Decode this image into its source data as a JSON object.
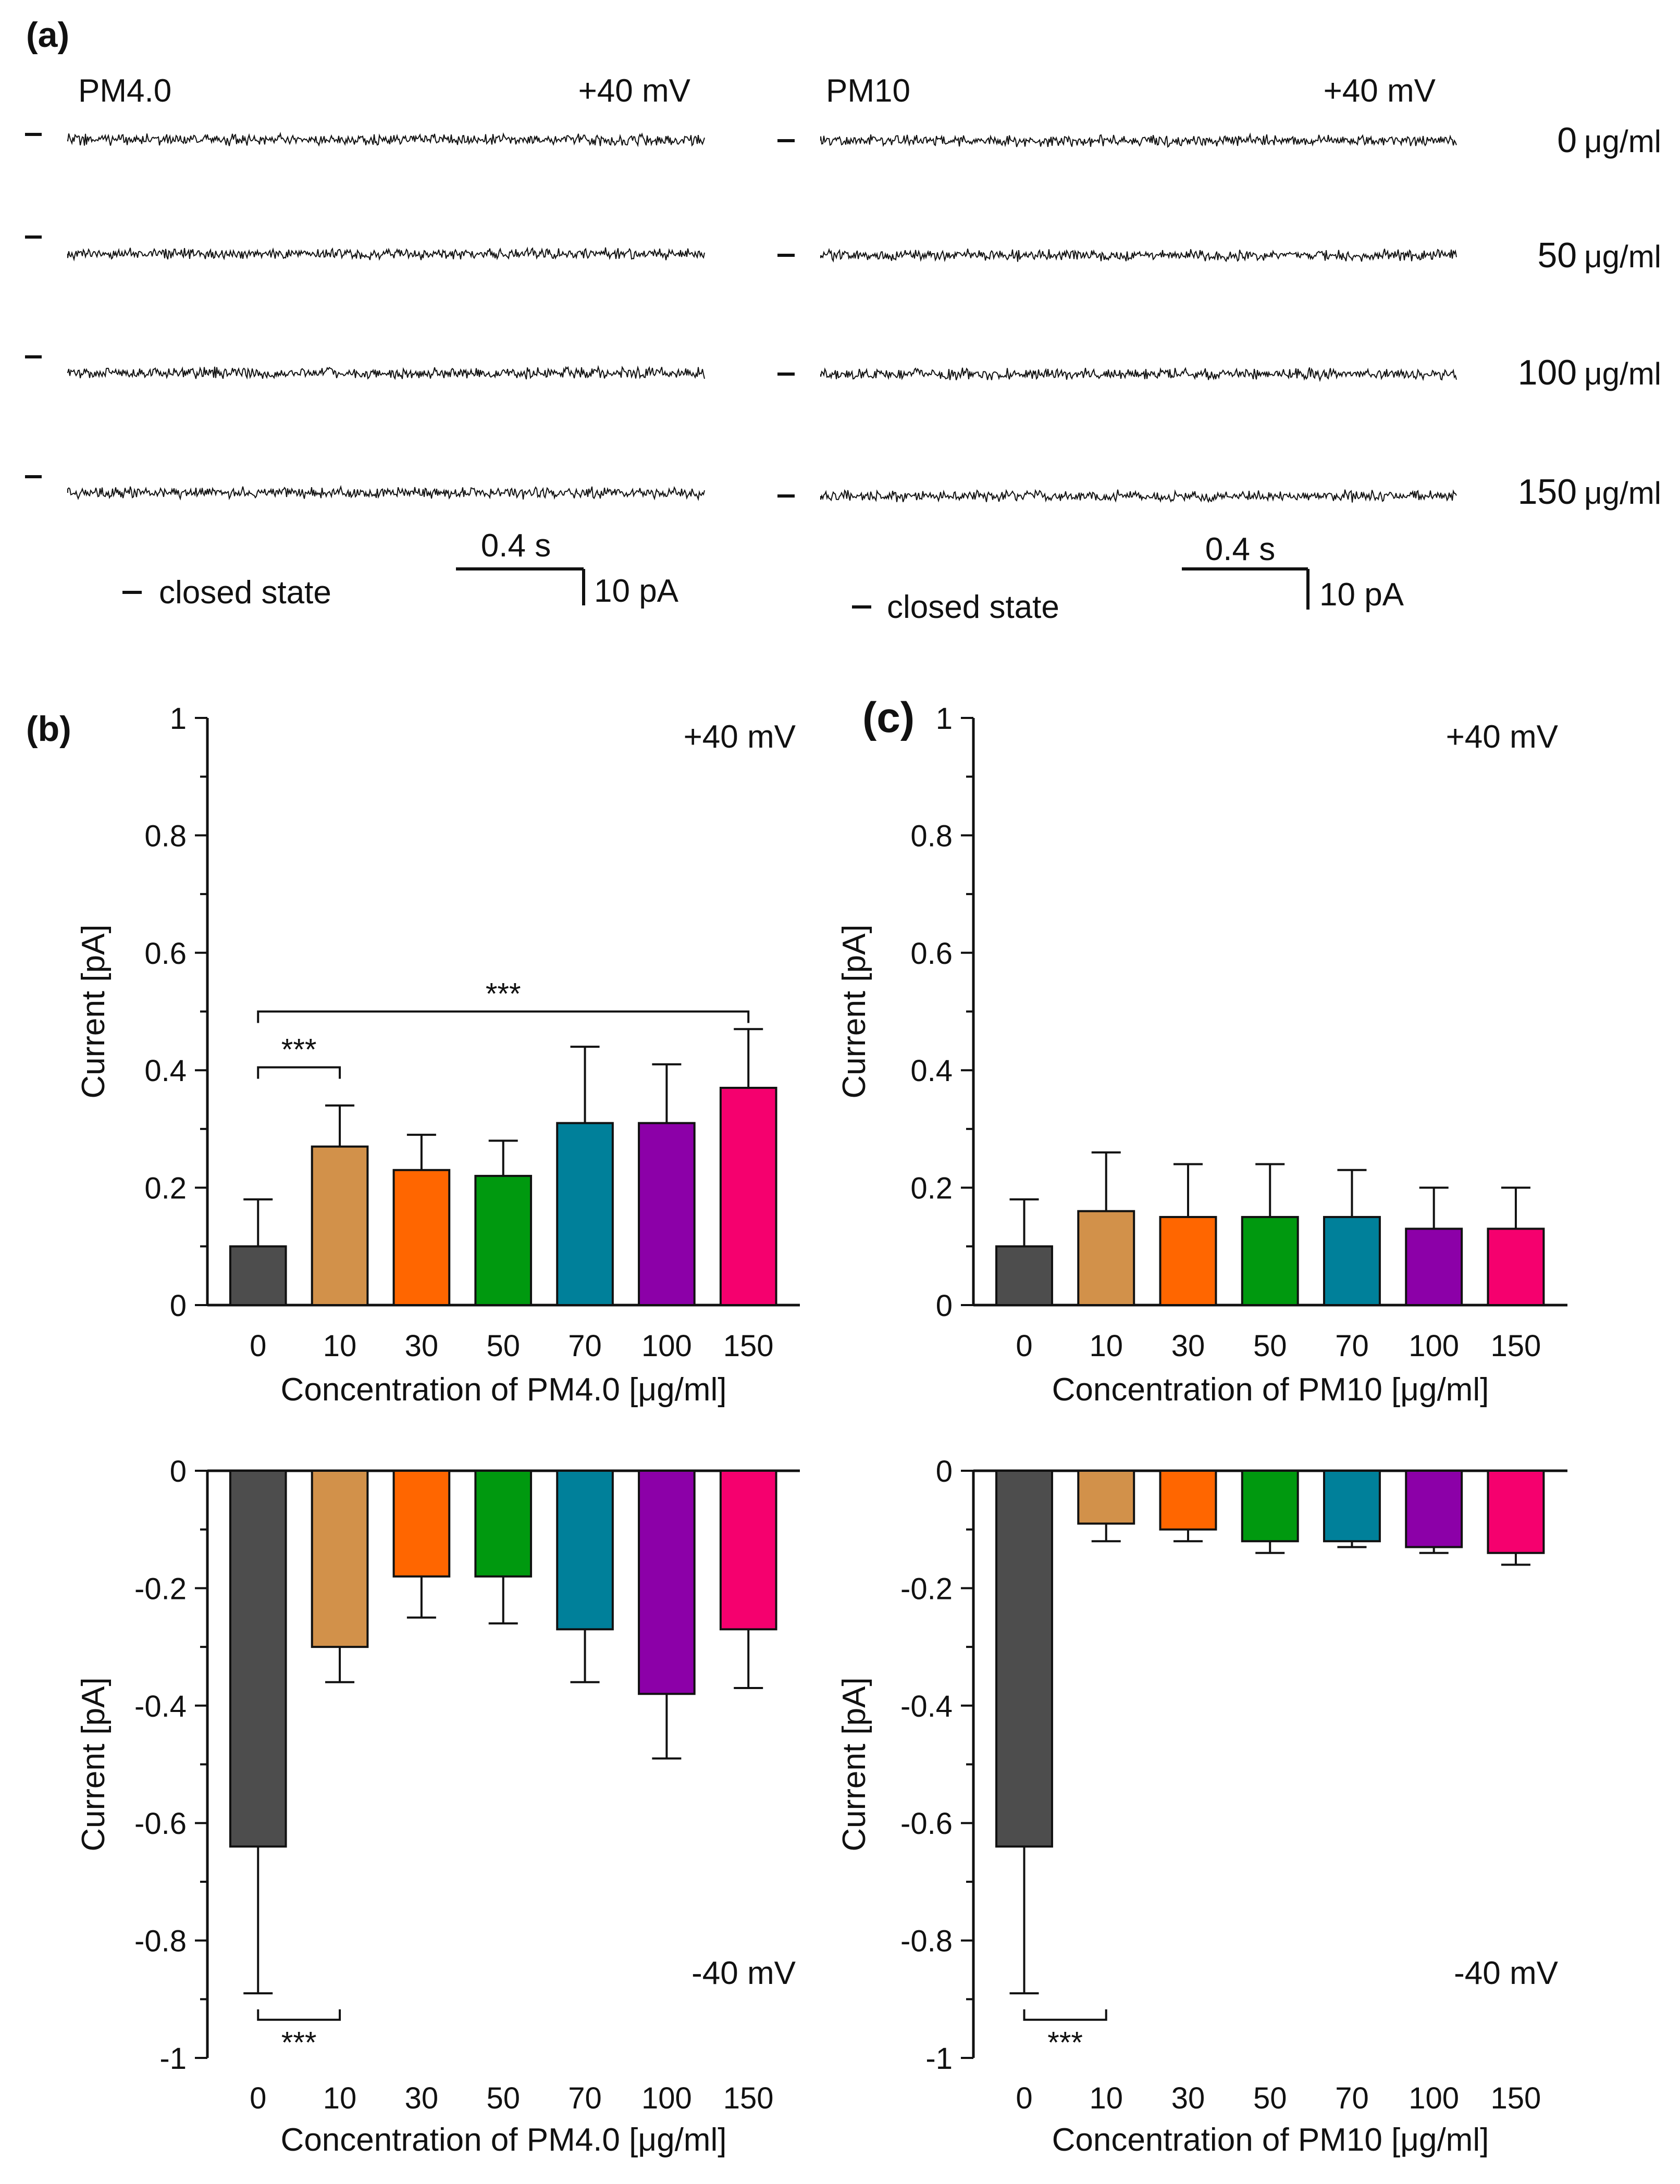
{
  "panel_a": {
    "label": "(a)",
    "left": {
      "title": "PM4.0",
      "voltage": "+40 mV",
      "closed_state": "closed state",
      "scale_time": "0.4 s",
      "scale_current": "10 pA"
    },
    "right": {
      "title": "PM10",
      "voltage": "+40 mV",
      "closed_state": "closed state",
      "scale_time": "0.4 s",
      "scale_current": "10 pA"
    },
    "rows": [
      {
        "value": "0",
        "unit": "μg/ml"
      },
      {
        "value": "50",
        "unit": "μg/ml"
      },
      {
        "value": "100",
        "unit": "μg/ml"
      },
      {
        "value": "150",
        "unit": "μg/ml"
      }
    ]
  },
  "panel_b_label": "(b)",
  "panel_c_label": "(c)",
  "colors": [
    "#4d4d4d",
    "#d2914a",
    "#ff6600",
    "#00990f",
    "#00809a",
    "#8c00a8",
    "#f5006e"
  ],
  "chart_data": [
    {
      "type": "bar",
      "panel": "b-top",
      "categories": [
        "0",
        "10",
        "30",
        "50",
        "70",
        "100",
        "150"
      ],
      "values": [
        0.1,
        0.27,
        0.23,
        0.22,
        0.31,
        0.31,
        0.37
      ],
      "errors": [
        0.08,
        0.07,
        0.06,
        0.06,
        0.13,
        0.1,
        0.1
      ],
      "annotation": "+40 mV",
      "xlabel": "Concentration of PM4.0 [μg/ml]",
      "ylabel": "Current [pA]",
      "ylim": [
        0,
        1
      ],
      "yticks": [
        0,
        0.2,
        0.4,
        0.6,
        0.8,
        1
      ],
      "ytick_labels": [
        "0",
        "0.2",
        "0.4",
        "0.6",
        "0.8",
        "1"
      ],
      "significance": [
        {
          "from": 0,
          "to": 1,
          "label": "***"
        },
        {
          "from": 0,
          "to": 6,
          "label": "***"
        }
      ]
    },
    {
      "type": "bar",
      "panel": "c-top",
      "categories": [
        "0",
        "10",
        "30",
        "50",
        "70",
        "100",
        "150"
      ],
      "values": [
        0.1,
        0.16,
        0.15,
        0.15,
        0.15,
        0.13,
        0.13
      ],
      "errors": [
        0.08,
        0.1,
        0.09,
        0.09,
        0.08,
        0.07,
        0.07
      ],
      "annotation": "+40 mV",
      "xlabel": "Concentration of PM10 [μg/ml]",
      "ylabel": "Current [pA]",
      "ylim": [
        0,
        1
      ],
      "yticks": [
        0,
        0.2,
        0.4,
        0.6,
        0.8,
        1
      ],
      "ytick_labels": [
        "0",
        "0.2",
        "0.4",
        "0.6",
        "0.8",
        "1"
      ],
      "significance": []
    },
    {
      "type": "bar",
      "panel": "b-bottom",
      "categories": [
        "0",
        "10",
        "30",
        "50",
        "70",
        "100",
        "150"
      ],
      "values": [
        -0.64,
        -0.3,
        -0.18,
        -0.18,
        -0.27,
        -0.38,
        -0.27
      ],
      "errors": [
        0.25,
        0.06,
        0.07,
        0.08,
        0.09,
        0.11,
        0.1
      ],
      "annotation": "-40 mV",
      "xlabel": "Concentration of PM4.0 [μg/ml]",
      "ylabel": "Current [pA]",
      "ylim": [
        -1,
        0
      ],
      "yticks": [
        0,
        -0.2,
        -0.4,
        -0.6,
        -0.8,
        -1
      ],
      "ytick_labels": [
        "0",
        "-0.2",
        "-0.4",
        "-0.6",
        "-0.8",
        "-1"
      ],
      "significance": [
        {
          "from": 0,
          "to": 1,
          "label": "***"
        }
      ]
    },
    {
      "type": "bar",
      "panel": "c-bottom",
      "categories": [
        "0",
        "10",
        "30",
        "50",
        "70",
        "100",
        "150"
      ],
      "values": [
        -0.64,
        -0.09,
        -0.1,
        -0.12,
        -0.12,
        -0.13,
        -0.14
      ],
      "errors": [
        0.25,
        0.03,
        0.02,
        0.02,
        0.01,
        0.01,
        0.02
      ],
      "annotation": "-40 mV",
      "xlabel": "Concentration of PM10 [μg/ml]",
      "ylabel": "Current [pA]",
      "ylim": [
        -1,
        0
      ],
      "yticks": [
        0,
        -0.2,
        -0.4,
        -0.6,
        -0.8,
        -1
      ],
      "ytick_labels": [
        "0",
        "-0.2",
        "-0.4",
        "-0.6",
        "-0.8",
        "-1"
      ],
      "significance": [
        {
          "from": 0,
          "to": 1,
          "label": "***"
        }
      ]
    }
  ]
}
